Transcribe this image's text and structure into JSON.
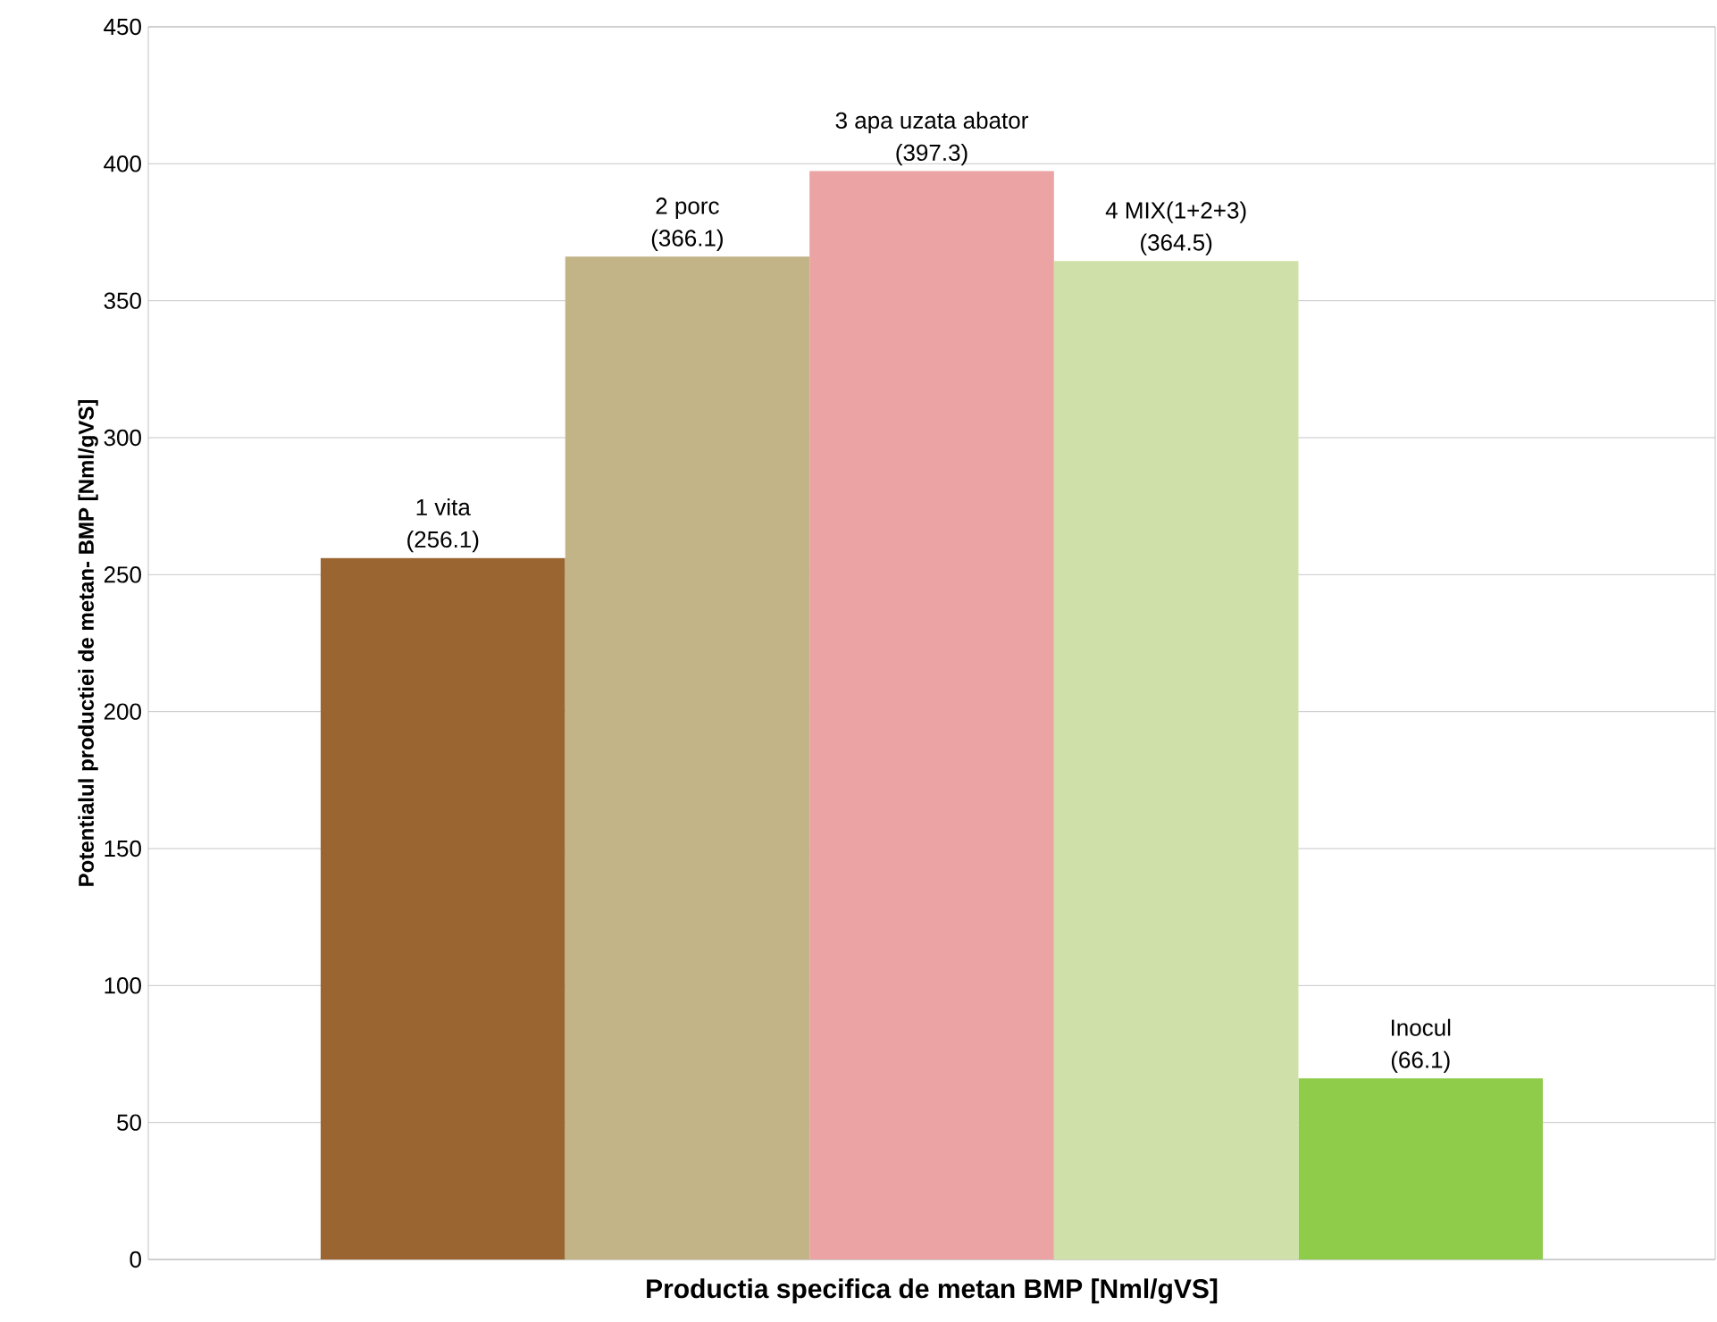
{
  "chart_data": {
    "type": "bar",
    "xlabel": "Productia specifica de metan BMP [Nml/gVS]",
    "ylabel": "Potentialul productiei de metan- BMP [Nml/gVS]",
    "categories": [
      null
    ],
    "series": [
      {
        "name": "1 vita",
        "color": "#9a6530",
        "values": [
          256.1
        ],
        "value_labels": [
          "(256.1)"
        ]
      },
      {
        "name": "2 porc",
        "color": "#c2b487",
        "values": [
          366.1
        ],
        "value_labels": [
          "(366.1)"
        ]
      },
      {
        "name": "3 apa uzata abator",
        "color": "#eba3a3",
        "values": [
          397.3
        ],
        "value_labels": [
          "(397.3)"
        ]
      },
      {
        "name": "4 MIX(1+2+3)",
        "color": "#cfe0a8",
        "values": [
          364.5
        ],
        "value_labels": [
          "(364.5)"
        ]
      },
      {
        "name": "Inocul",
        "color": "#8fcc4a",
        "values": [
          66.1
        ],
        "value_labels": [
          "(66.1)"
        ]
      }
    ],
    "ylim": [
      0,
      450
    ],
    "yticks": [
      0,
      50,
      100,
      150,
      200,
      250,
      300,
      350,
      400,
      450
    ],
    "grid": "y"
  }
}
